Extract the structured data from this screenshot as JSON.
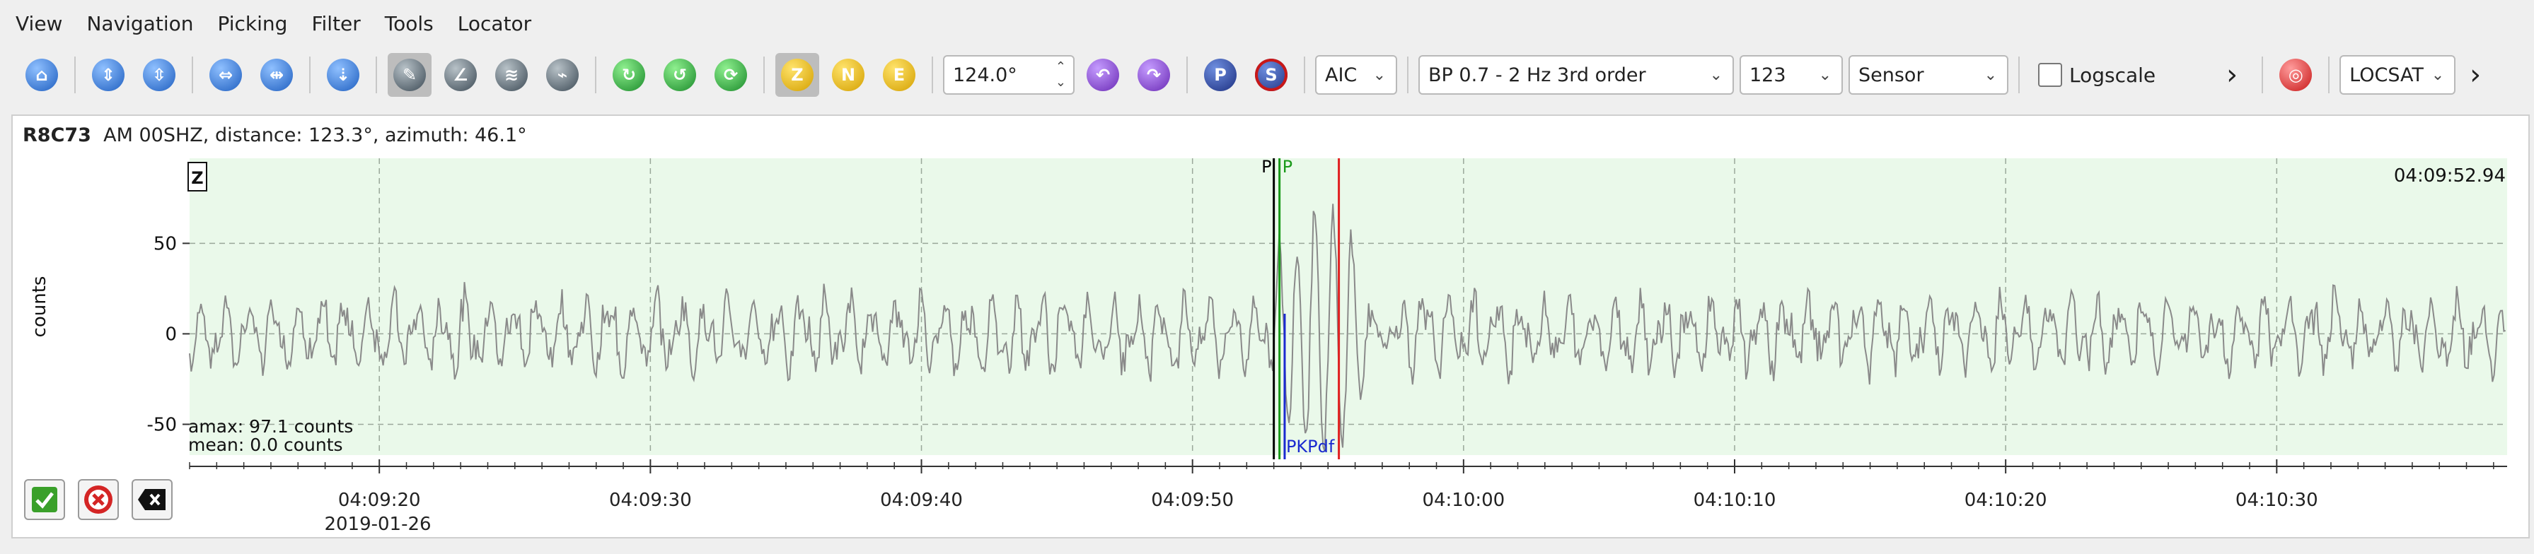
{
  "menu": [
    "View",
    "Navigation",
    "Picking",
    "Filter",
    "Tools",
    "Locator"
  ],
  "toolbar": {
    "component_z": "Z",
    "component_n": "N",
    "component_e": "E",
    "angle_value": "124.0°",
    "pick_p_label": "P",
    "pick_s_label": "S",
    "picker_method": "AIC",
    "filter": "BP 0.7 - 2 Hz  3rd order",
    "numeric_select": "123",
    "unit_select": "Sensor",
    "logscale_label": "Logscale",
    "overflow_glyph": "›",
    "locator": "LOCSAT",
    "locator_more": "›"
  },
  "trace": {
    "station": "R8C73",
    "info": "AM  00SHZ, distance: 123.3°, azimuth: 46.1°",
    "component_badge": "Z",
    "ylabel": "counts",
    "time_readout": "04:09:52.94",
    "amax": "amax: 97.1 counts",
    "mean": "mean: 0.0 counts",
    "date_label": "2019-01-26",
    "pick_p_black": "P",
    "pick_p_green": "P",
    "pick_pkpdf": "PKPdf"
  },
  "chart_data": {
    "type": "line",
    "xlabel": "",
    "ylabel": "counts",
    "x_ticks": [
      "04:09:20",
      "04:09:30",
      "04:09:40",
      "04:09:50",
      "04:10:00",
      "04:10:10",
      "04:10:20",
      "04:10:30"
    ],
    "y_ticks": [
      50,
      0,
      -50
    ],
    "ylim": [
      -67,
      97
    ],
    "xlim_seconds_after_0409": [
      13,
      98.5
    ],
    "picks": [
      {
        "label": "P",
        "color": "#000000",
        "time_seconds_after_0409": 53.0
      },
      {
        "label": "P",
        "color": "#1a9a1a",
        "time_seconds_after_0409": 53.0
      },
      {
        "label": "PKPdf",
        "color": "#1a2ad0",
        "time_seconds_after_0409": 53.4
      },
      {
        "label": "",
        "color": "#e02020",
        "time_seconds_after_0409": 55.4
      }
    ],
    "grid": true,
    "colors": {
      "background": "#eaf9ea",
      "trace": "#8a8a8a",
      "grid": "#9aa89a"
    }
  }
}
